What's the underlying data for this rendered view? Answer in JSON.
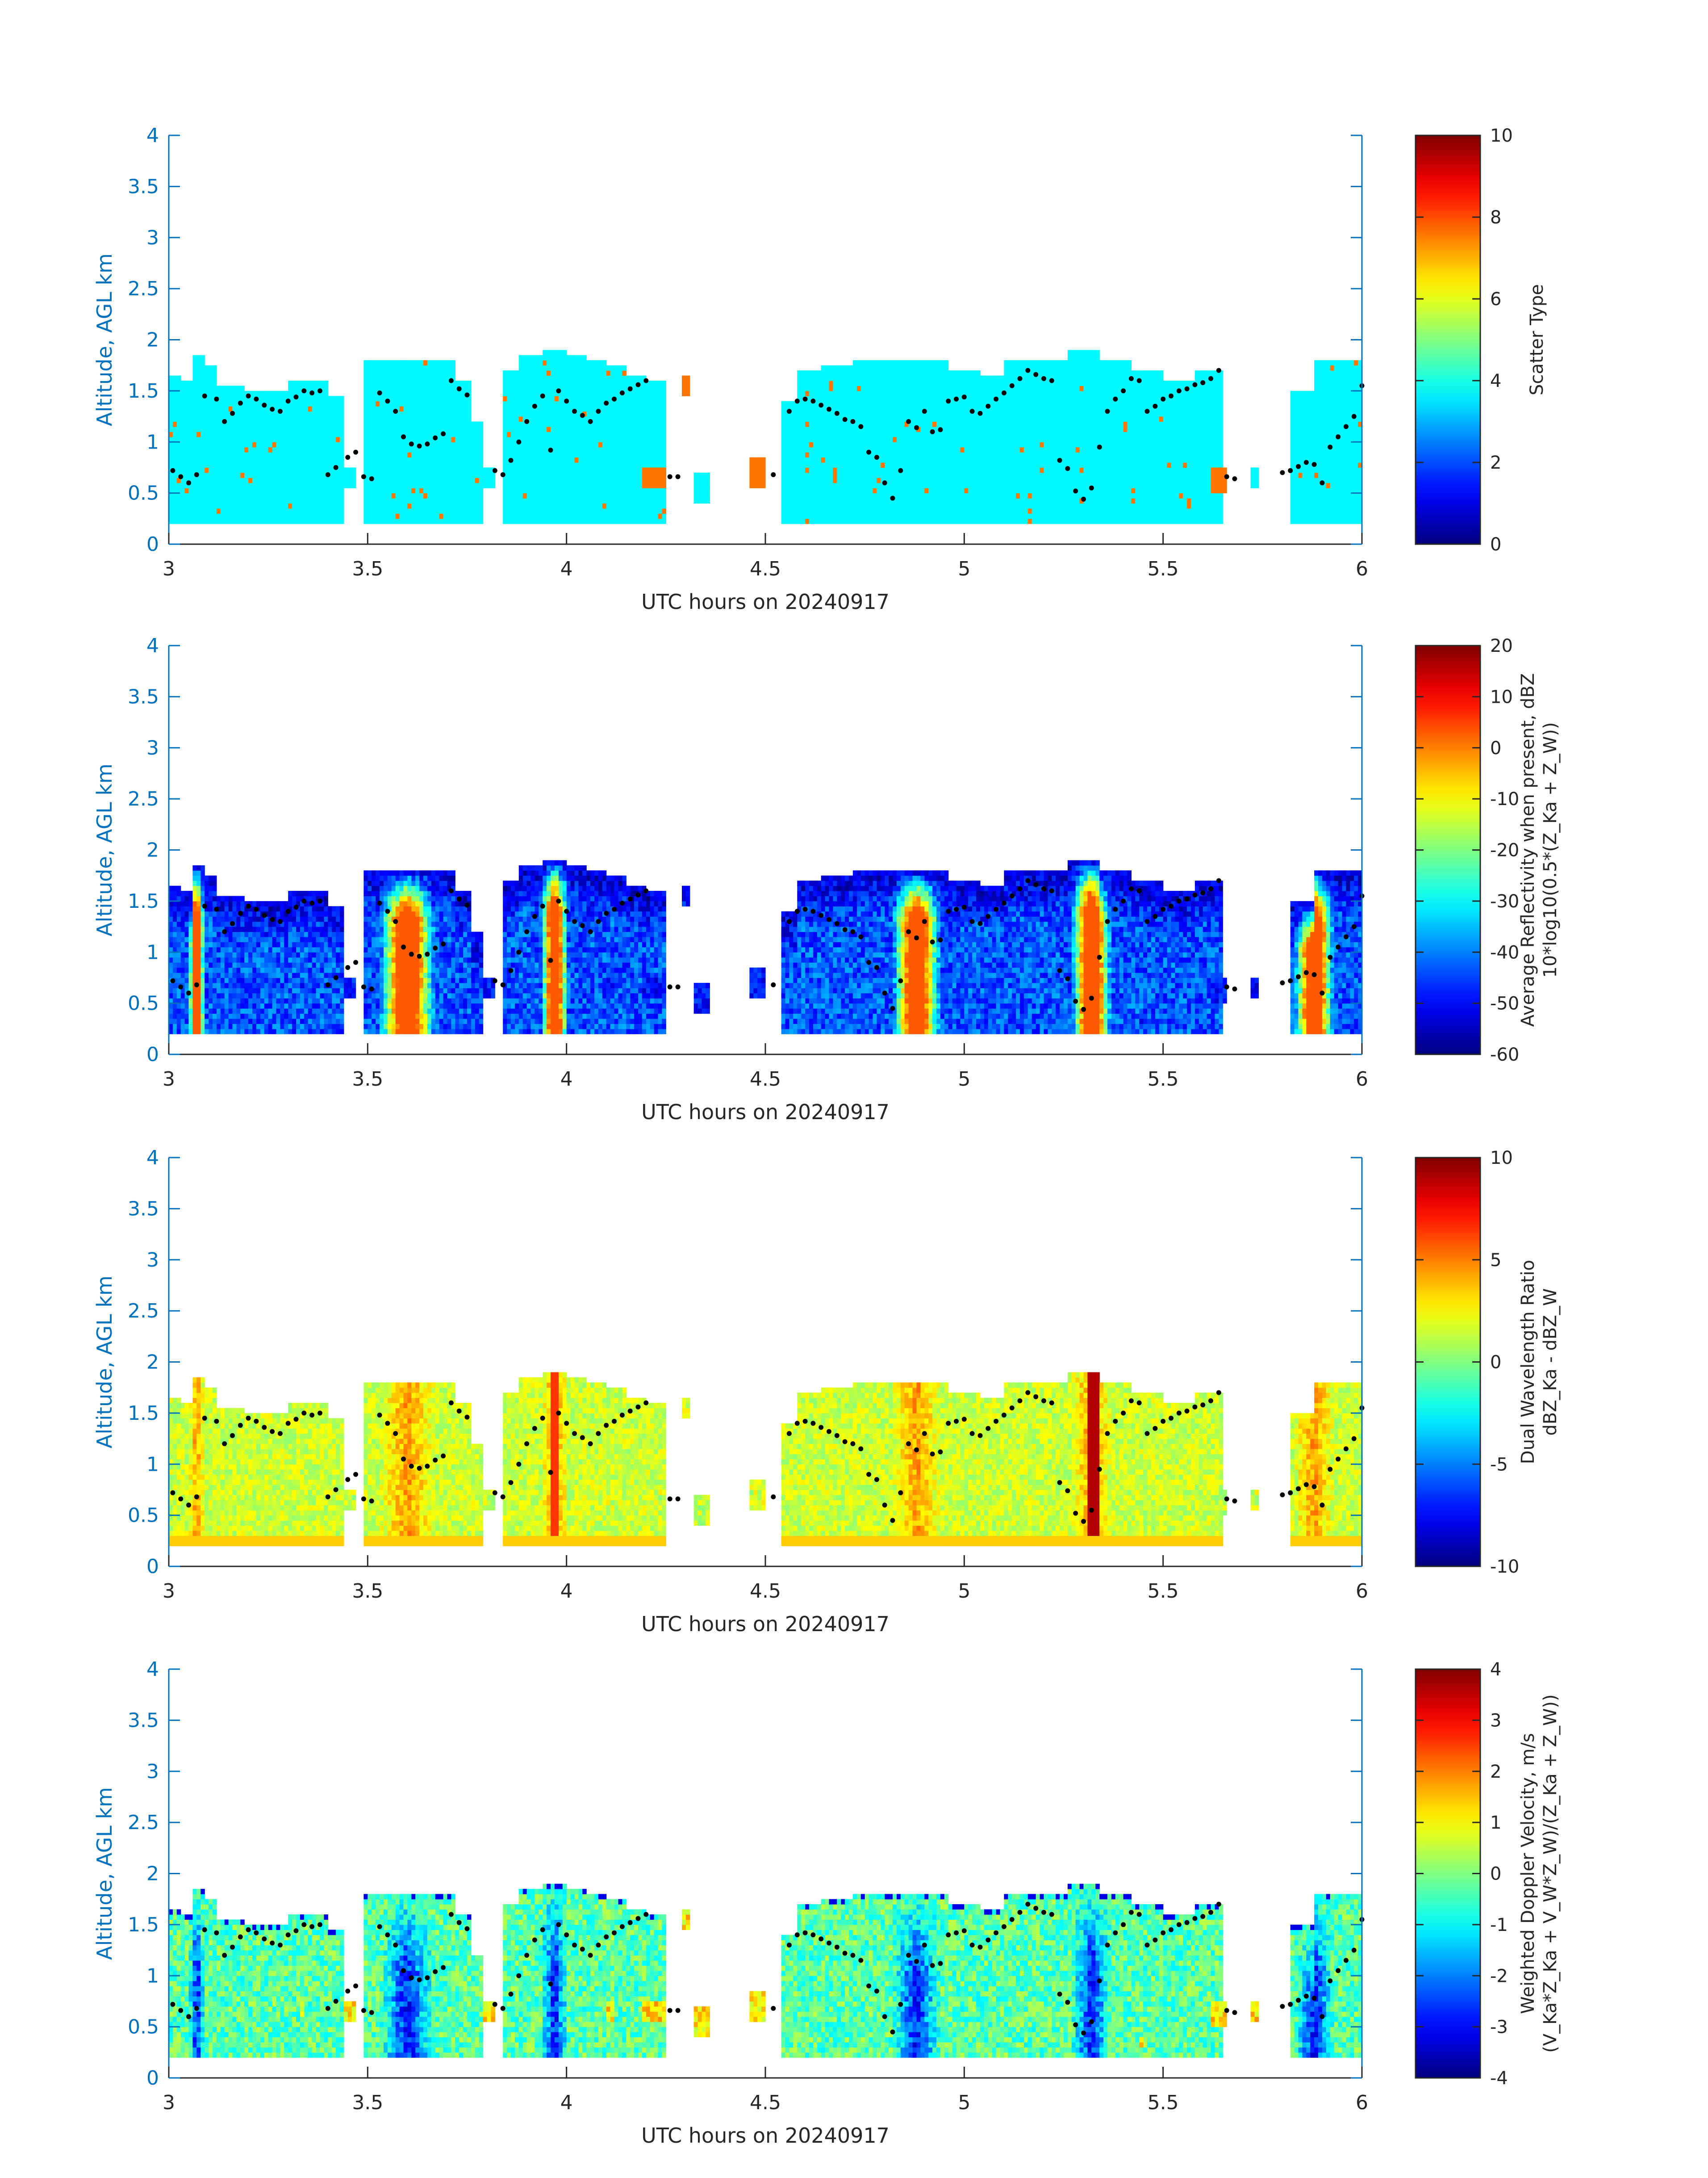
{
  "chart_data": [
    {
      "type": "heatmap",
      "title": "",
      "xlabel": "UTC hours on 20240917",
      "ylabel": "Altitude, AGL km",
      "xlim": [
        3,
        6
      ],
      "ylim": [
        0,
        4
      ],
      "x_ticks": [
        "3",
        "3.5",
        "4",
        "4.5",
        "5",
        "5.5",
        "6"
      ],
      "y_ticks": [
        "0",
        "0.5",
        "1",
        "1.5",
        "2",
        "2.5",
        "3",
        "3.5",
        "4"
      ],
      "colorbar": {
        "label_lines": [
          "Scatter Type"
        ],
        "range": [
          0,
          10
        ],
        "ticks": [
          "0",
          "2",
          "4",
          "6",
          "8",
          "10"
        ]
      },
      "colormap": "jet",
      "field": "scatter_type",
      "dominant_value": 3.7,
      "secondary_value": 7.6
    },
    {
      "type": "heatmap",
      "title": "",
      "xlabel": "UTC hours on 20240917",
      "ylabel": "Altitude, AGL km",
      "xlim": [
        3,
        6
      ],
      "ylim": [
        0,
        4
      ],
      "x_ticks": [
        "3",
        "3.5",
        "4",
        "4.5",
        "5",
        "5.5",
        "6"
      ],
      "y_ticks": [
        "0",
        "0.5",
        "1",
        "1.5",
        "2",
        "2.5",
        "3",
        "3.5",
        "4"
      ],
      "colorbar": {
        "label_lines": [
          "Average Reflectivity when present, dBZ",
          "10*log10(0.5*(Z_Ka + Z_W))"
        ],
        "range": [
          -60,
          20
        ],
        "ticks": [
          "-60",
          "-50",
          "-40",
          "-30",
          "-20",
          "-10",
          "0",
          "10",
          "20"
        ]
      },
      "colormap": "jet",
      "field": "reflectivity_dbz",
      "core_value": 3,
      "edge_value": -55
    },
    {
      "type": "heatmap",
      "title": "",
      "xlabel": "UTC hours on 20240917",
      "ylabel": "Altitude, AGL km",
      "xlim": [
        3,
        6
      ],
      "ylim": [
        0,
        4
      ],
      "x_ticks": [
        "3",
        "3.5",
        "4",
        "4.5",
        "5",
        "5.5",
        "6"
      ],
      "y_ticks": [
        "0",
        "0.5",
        "1",
        "1.5",
        "2",
        "2.5",
        "3",
        "3.5",
        "4"
      ],
      "colorbar": {
        "label_lines": [
          "Dual Wavelength Ratio",
          "dBZ_Ka - dBZ_W"
        ],
        "range": [
          -10,
          10
        ],
        "ticks": [
          "-10",
          "-5",
          "0",
          "5",
          "10"
        ]
      },
      "colormap": "jet",
      "field": "dual_wavelength_ratio_db",
      "typical_value": 1.5,
      "core_value": 9
    },
    {
      "type": "heatmap",
      "title": "",
      "xlabel": "UTC hours on 20240917",
      "ylabel": "Altitude, AGL km",
      "xlim": [
        3,
        6
      ],
      "ylim": [
        0,
        4
      ],
      "x_ticks": [
        "3",
        "3.5",
        "4",
        "4.5",
        "5",
        "5.5",
        "6"
      ],
      "y_ticks": [
        "0",
        "0.5",
        "1",
        "1.5",
        "2",
        "2.5",
        "3",
        "3.5",
        "4"
      ],
      "colorbar": {
        "label_lines": [
          "Weighted Doppler Velocity, m/s",
          "(V_Ka*Z_Ka + V_W*Z_W)/(Z_Ka + Z_W))"
        ],
        "range": [
          -4,
          4
        ],
        "ticks": [
          "-4",
          "-3",
          "-2",
          "-1",
          "0",
          "1",
          "2",
          "3",
          "4"
        ]
      },
      "colormap": "jet",
      "field": "doppler_velocity_ms",
      "typical_value": -0.3,
      "core_value": -3.2
    }
  ],
  "cloud_mask": {
    "description_units": "x in UTC hours, y in km AGL",
    "cloud_base_km": 0.2,
    "segments": [
      {
        "x0": 3.0,
        "x1": 3.03,
        "top": 1.65
      },
      {
        "x0": 3.03,
        "x1": 3.06,
        "top": 1.6
      },
      {
        "x0": 3.06,
        "x1": 3.09,
        "top": 1.85
      },
      {
        "x0": 3.09,
        "x1": 3.12,
        "top": 1.75
      },
      {
        "x0": 3.12,
        "x1": 3.15,
        "top": 1.55
      },
      {
        "x0": 3.15,
        "x1": 3.19,
        "top": 1.55
      },
      {
        "x0": 3.19,
        "x1": 3.22,
        "top": 1.5
      },
      {
        "x0": 3.22,
        "x1": 3.25,
        "top": 1.5
      },
      {
        "x0": 3.25,
        "x1": 3.3,
        "top": 1.5
      },
      {
        "x0": 3.3,
        "x1": 3.35,
        "top": 1.6
      },
      {
        "x0": 3.35,
        "x1": 3.4,
        "top": 1.6
      },
      {
        "x0": 3.4,
        "x1": 3.44,
        "top": 1.45
      },
      {
        "x0": 3.49,
        "x1": 3.55,
        "top": 1.8
      },
      {
        "x0": 3.55,
        "x1": 3.62,
        "top": 1.8
      },
      {
        "x0": 3.62,
        "x1": 3.68,
        "top": 1.8
      },
      {
        "x0": 3.68,
        "x1": 3.72,
        "top": 1.8
      },
      {
        "x0": 3.72,
        "x1": 3.76,
        "top": 1.6
      },
      {
        "x0": 3.76,
        "x1": 3.79,
        "top": 1.2
      },
      {
        "x0": 3.84,
        "x1": 3.88,
        "top": 1.7
      },
      {
        "x0": 3.88,
        "x1": 3.94,
        "top": 1.85
      },
      {
        "x0": 3.94,
        "x1": 4.0,
        "top": 1.9
      },
      {
        "x0": 4.0,
        "x1": 4.05,
        "top": 1.85
      },
      {
        "x0": 4.05,
        "x1": 4.1,
        "top": 1.8
      },
      {
        "x0": 4.1,
        "x1": 4.15,
        "top": 1.75
      },
      {
        "x0": 4.15,
        "x1": 4.2,
        "top": 1.65
      },
      {
        "x0": 4.2,
        "x1": 4.25,
        "top": 1.6
      },
      {
        "x0": 4.54,
        "x1": 4.58,
        "top": 1.4
      },
      {
        "x0": 4.58,
        "x1": 4.64,
        "top": 1.7
      },
      {
        "x0": 4.64,
        "x1": 4.72,
        "top": 1.75
      },
      {
        "x0": 4.72,
        "x1": 4.8,
        "top": 1.8
      },
      {
        "x0": 4.8,
        "x1": 4.88,
        "top": 1.8
      },
      {
        "x0": 4.88,
        "x1": 4.96,
        "top": 1.8
      },
      {
        "x0": 4.96,
        "x1": 5.04,
        "top": 1.7
      },
      {
        "x0": 5.04,
        "x1": 5.1,
        "top": 1.65
      },
      {
        "x0": 5.1,
        "x1": 5.18,
        "top": 1.8
      },
      {
        "x0": 5.18,
        "x1": 5.26,
        "top": 1.8
      },
      {
        "x0": 5.26,
        "x1": 5.34,
        "top": 1.9
      },
      {
        "x0": 5.34,
        "x1": 5.42,
        "top": 1.8
      },
      {
        "x0": 5.42,
        "x1": 5.5,
        "top": 1.7
      },
      {
        "x0": 5.5,
        "x1": 5.58,
        "top": 1.6
      },
      {
        "x0": 5.58,
        "x1": 5.65,
        "top": 1.7
      },
      {
        "x0": 5.82,
        "x1": 5.88,
        "top": 1.5
      },
      {
        "x0": 5.88,
        "x1": 5.94,
        "top": 1.8
      },
      {
        "x0": 5.94,
        "x1": 6.0,
        "top": 1.8
      }
    ],
    "patches": [
      {
        "x0": 3.33,
        "x1": 3.34,
        "y0": 0.6,
        "y1": 0.75
      },
      {
        "x0": 3.44,
        "x1": 3.47,
        "y0": 0.55,
        "y1": 0.75
      },
      {
        "x0": 3.79,
        "x1": 3.82,
        "y0": 0.55,
        "y1": 0.75
      },
      {
        "x0": 4.1,
        "x1": 4.12,
        "y0": 0.55,
        "y1": 0.75
      },
      {
        "x0": 4.19,
        "x1": 4.25,
        "y0": 0.55,
        "y1": 0.75
      },
      {
        "x0": 4.32,
        "x1": 4.36,
        "y0": 0.4,
        "y1": 0.7
      },
      {
        "x0": 4.46,
        "x1": 4.5,
        "y0": 0.55,
        "y1": 0.85
      },
      {
        "x0": 4.29,
        "x1": 4.31,
        "y0": 1.45,
        "y1": 1.65
      },
      {
        "x0": 5.62,
        "x1": 5.66,
        "y0": 0.5,
        "y1": 0.75
      },
      {
        "x0": 5.72,
        "x1": 5.74,
        "y0": 0.55,
        "y1": 0.75
      },
      {
        "x0": 5.44,
        "x1": 5.45,
        "y0": 0.3,
        "y1": 0.4
      }
    ],
    "cores": [
      {
        "x": 3.07,
        "width": 0.04
      },
      {
        "x": 3.6,
        "width": 0.14
      },
      {
        "x": 3.97,
        "width": 0.07
      },
      {
        "x": 4.88,
        "width": 0.12
      },
      {
        "x": 5.32,
        "width": 0.1
      },
      {
        "x": 5.88,
        "width": 0.1
      }
    ],
    "ceilometer_dots": [
      [
        3.01,
        0.72
      ],
      [
        3.03,
        0.66
      ],
      [
        3.05,
        0.6
      ],
      [
        3.07,
        0.68
      ],
      [
        3.09,
        1.45
      ],
      [
        3.12,
        1.42
      ],
      [
        3.14,
        1.2
      ],
      [
        3.16,
        1.28
      ],
      [
        3.18,
        1.38
      ],
      [
        3.2,
        1.45
      ],
      [
        3.22,
        1.42
      ],
      [
        3.24,
        1.36
      ],
      [
        3.26,
        1.32
      ],
      [
        3.28,
        1.3
      ],
      [
        3.3,
        1.4
      ],
      [
        3.32,
        1.44
      ],
      [
        3.34,
        1.5
      ],
      [
        3.36,
        1.48
      ],
      [
        3.38,
        1.5
      ],
      [
        3.4,
        0.68
      ],
      [
        3.42,
        0.75
      ],
      [
        3.45,
        0.85
      ],
      [
        3.47,
        0.9
      ],
      [
        3.49,
        0.66
      ],
      [
        3.51,
        0.64
      ],
      [
        3.53,
        1.48
      ],
      [
        3.55,
        1.4
      ],
      [
        3.57,
        1.3
      ],
      [
        3.59,
        1.05
      ],
      [
        3.61,
        0.98
      ],
      [
        3.63,
        0.96
      ],
      [
        3.65,
        0.98
      ],
      [
        3.67,
        1.04
      ],
      [
        3.69,
        1.08
      ],
      [
        3.71,
        1.6
      ],
      [
        3.73,
        1.52
      ],
      [
        3.75,
        1.46
      ],
      [
        3.82,
        0.72
      ],
      [
        3.84,
        0.68
      ],
      [
        3.86,
        0.82
      ],
      [
        3.88,
        1.0
      ],
      [
        3.9,
        1.2
      ],
      [
        3.92,
        1.35
      ],
      [
        3.94,
        1.45
      ],
      [
        3.96,
        0.92
      ],
      [
        3.98,
        1.5
      ],
      [
        4.0,
        1.4
      ],
      [
        4.02,
        1.3
      ],
      [
        4.04,
        1.26
      ],
      [
        4.06,
        1.2
      ],
      [
        4.08,
        1.3
      ],
      [
        4.1,
        1.38
      ],
      [
        4.12,
        1.42
      ],
      [
        4.14,
        1.48
      ],
      [
        4.16,
        1.52
      ],
      [
        4.18,
        1.56
      ],
      [
        4.2,
        1.6
      ],
      [
        4.26,
        0.66
      ],
      [
        4.28,
        0.66
      ],
      [
        4.52,
        0.68
      ],
      [
        4.56,
        1.3
      ],
      [
        4.58,
        1.4
      ],
      [
        4.6,
        1.42
      ],
      [
        4.62,
        1.4
      ],
      [
        4.64,
        1.36
      ],
      [
        4.66,
        1.32
      ],
      [
        4.68,
        1.28
      ],
      [
        4.7,
        1.22
      ],
      [
        4.72,
        1.2
      ],
      [
        4.74,
        1.15
      ],
      [
        4.76,
        0.9
      ],
      [
        4.78,
        0.85
      ],
      [
        4.8,
        0.6
      ],
      [
        4.82,
        0.45
      ],
      [
        4.84,
        0.72
      ],
      [
        4.86,
        1.2
      ],
      [
        4.88,
        1.14
      ],
      [
        4.9,
        1.3
      ],
      [
        4.92,
        1.1
      ],
      [
        4.94,
        1.12
      ],
      [
        4.96,
        1.4
      ],
      [
        4.98,
        1.42
      ],
      [
        5.0,
        1.44
      ],
      [
        5.02,
        1.3
      ],
      [
        5.04,
        1.28
      ],
      [
        5.06,
        1.35
      ],
      [
        5.08,
        1.42
      ],
      [
        5.1,
        1.48
      ],
      [
        5.12,
        1.55
      ],
      [
        5.14,
        1.62
      ],
      [
        5.16,
        1.7
      ],
      [
        5.18,
        1.66
      ],
      [
        5.2,
        1.62
      ],
      [
        5.22,
        1.6
      ],
      [
        5.24,
        0.82
      ],
      [
        5.26,
        0.74
      ],
      [
        5.28,
        0.52
      ],
      [
        5.3,
        0.44
      ],
      [
        5.32,
        0.55
      ],
      [
        5.34,
        0.95
      ],
      [
        5.36,
        1.3
      ],
      [
        5.38,
        1.42
      ],
      [
        5.4,
        1.5
      ],
      [
        5.42,
        1.62
      ],
      [
        5.44,
        1.6
      ],
      [
        5.46,
        1.3
      ],
      [
        5.48,
        1.35
      ],
      [
        5.5,
        1.42
      ],
      [
        5.52,
        1.45
      ],
      [
        5.54,
        1.5
      ],
      [
        5.56,
        1.52
      ],
      [
        5.58,
        1.56
      ],
      [
        5.6,
        1.58
      ],
      [
        5.62,
        1.62
      ],
      [
        5.64,
        1.7
      ],
      [
        5.66,
        0.66
      ],
      [
        5.68,
        0.64
      ],
      [
        5.8,
        0.7
      ],
      [
        5.82,
        0.72
      ],
      [
        5.84,
        0.76
      ],
      [
        5.86,
        0.8
      ],
      [
        5.88,
        0.78
      ],
      [
        5.9,
        0.6
      ],
      [
        5.92,
        0.95
      ],
      [
        5.94,
        1.05
      ],
      [
        5.96,
        1.15
      ],
      [
        5.98,
        1.25
      ],
      [
        6.0,
        1.55
      ]
    ]
  }
}
